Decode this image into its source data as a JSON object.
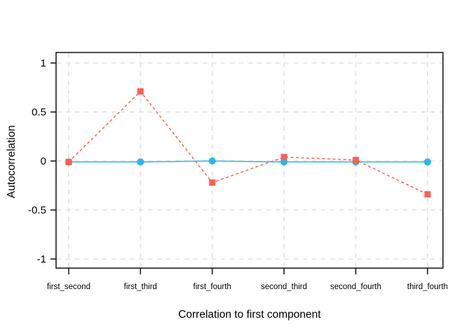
{
  "chart_data": {
    "type": "line",
    "title": "",
    "xlabel": "Correlation to first component",
    "ylabel": "Autocorrelation",
    "categories": [
      "first_second",
      "first_third",
      "first_fourth",
      "second_third",
      "second_fourth",
      "third_fourth"
    ],
    "series": [
      {
        "name": "red-dashed-squares",
        "color": "#f8624e",
        "marker": "square",
        "line_style": "dashed",
        "values": [
          -0.01,
          0.71,
          -0.22,
          0.04,
          0.01,
          -0.34
        ]
      },
      {
        "name": "blue-solid-circles",
        "color": "#2bb7ea",
        "marker": "circle",
        "line_style": "solid",
        "values": [
          -0.01,
          -0.01,
          0,
          -0.01,
          -0.01,
          -0.01
        ]
      }
    ],
    "yticks": [
      1,
      0.5,
      0,
      -0.5,
      -1
    ],
    "ytick_labels": [
      "1",
      "0.5",
      "0",
      "-0.5",
      "-1"
    ],
    "ylim": [
      -1.1,
      1.1
    ],
    "grid": "dashed",
    "grid_color": "#e4e4e4",
    "axis_color": "#000000",
    "text_color": "#000000",
    "background": "#ffffff",
    "legend": "none"
  }
}
